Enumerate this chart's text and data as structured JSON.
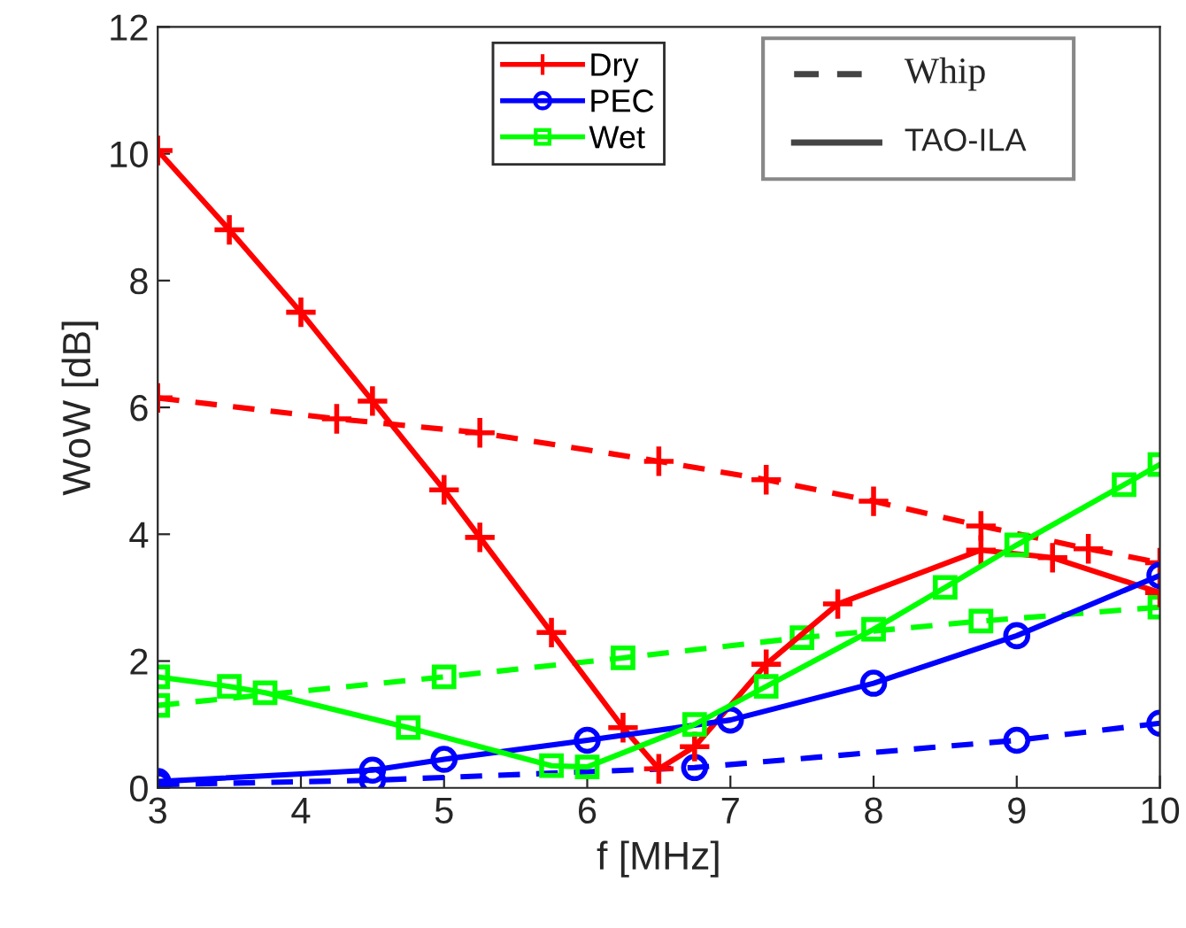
{
  "chart_data": {
    "type": "line",
    "xlabel": "f [MHz]",
    "ylabel": "WoW [dB]",
    "xlim": [
      3,
      10
    ],
    "ylim": [
      0,
      12
    ],
    "xticks": [
      3,
      4,
      5,
      6,
      7,
      8,
      9,
      10
    ],
    "yticks": [
      0,
      2,
      4,
      6,
      8,
      10,
      12
    ],
    "grid": false,
    "legend": "top",
    "annotations": [
      "Whip",
      "TAO-ILA"
    ],
    "series": [
      {
        "color": "#ff0000",
        "marker": "cross",
        "line_style": "dashed",
        "x": [
          3,
          4.25,
          5.25,
          6.5,
          7.25,
          8,
          8.75,
          9.5,
          10
        ],
        "values": [
          6.15,
          5.82,
          5.6,
          5.15,
          4.86,
          4.52,
          4.13,
          3.77,
          3.55
        ]
      },
      {
        "color": "#0000ff",
        "marker": "circle",
        "line_style": "dashed",
        "x": [
          3,
          4.5,
          6.75,
          9,
          10
        ],
        "values": [
          0.05,
          0.12,
          0.32,
          0.75,
          1.02
        ]
      },
      {
        "color": "#00ff00",
        "marker": "square",
        "line_style": "dashed",
        "x": [
          3,
          5,
          6.25,
          7.5,
          8.75,
          10
        ],
        "values": [
          1.3,
          1.75,
          2.05,
          2.37,
          2.63,
          2.85
        ]
      },
      {
        "name": "Dry",
        "color": "#ff0000",
        "marker": "cross",
        "line_style": "solid",
        "x": [
          3,
          3.5,
          4,
          4.5,
          5,
          5.25,
          5.75,
          6.25,
          6.5,
          6.75,
          7.25,
          7.75,
          8.75,
          9.25,
          10
        ],
        "values": [
          10.05,
          8.8,
          7.5,
          6.1,
          4.7,
          3.95,
          2.45,
          0.95,
          0.3,
          0.65,
          1.95,
          2.9,
          3.75,
          3.63,
          3.08
        ]
      },
      {
        "name": "PEC",
        "color": "#0000ff",
        "marker": "circle",
        "line_style": "solid",
        "x": [
          3,
          4.5,
          5,
          6,
          7,
          8,
          9,
          10
        ],
        "values": [
          0.1,
          0.28,
          0.45,
          0.75,
          1.07,
          1.65,
          2.4,
          3.35
        ]
      },
      {
        "name": "Wet",
        "color": "#00ff00",
        "marker": "square",
        "line_style": "solid",
        "x": [
          3,
          3.5,
          3.75,
          4.75,
          5.75,
          6,
          6.75,
          7.25,
          8,
          8.5,
          9,
          9.75,
          10
        ],
        "values": [
          1.75,
          1.6,
          1.5,
          0.95,
          0.35,
          0.33,
          1.0,
          1.6,
          2.5,
          3.16,
          3.83,
          4.78,
          5.1
        ]
      }
    ]
  }
}
